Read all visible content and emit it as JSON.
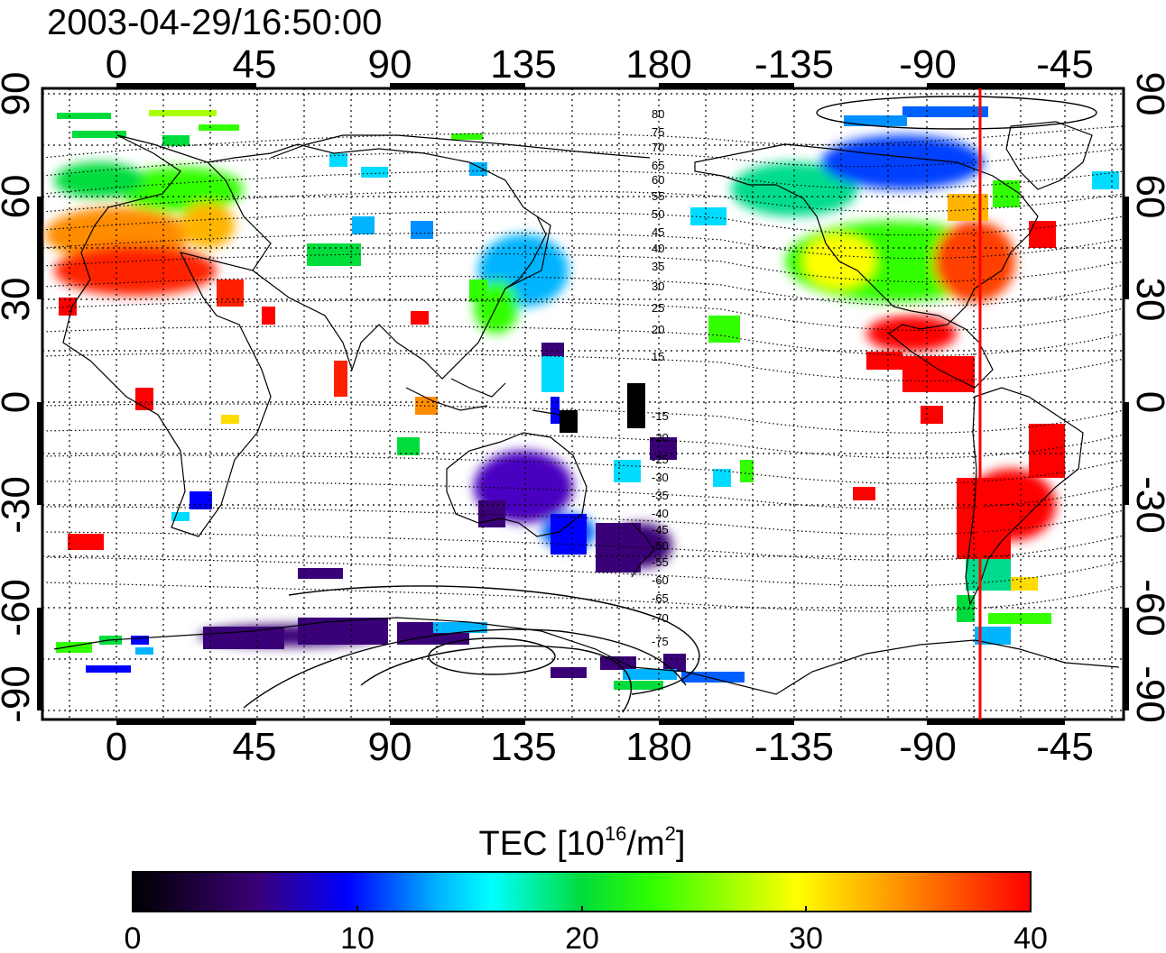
{
  "title": "2003-04-29/16:50:00",
  "map": {
    "top_lon_labels": [
      "0",
      "45",
      "90",
      "135",
      "180",
      "-135",
      "-90",
      "-45"
    ],
    "bottom_lon_labels": [
      "0",
      "45",
      "90",
      "135",
      "180",
      "-135",
      "-90",
      "-45"
    ],
    "left_lat_labels": [
      "90",
      "60",
      "30",
      "0",
      "-30",
      "-60",
      "-90"
    ],
    "right_lat_labels": [
      "90",
      "60",
      "30",
      "0",
      "-30",
      "-60",
      "-90"
    ],
    "contour_labels_north": [
      "80",
      "75",
      "70",
      "65",
      "60",
      "55",
      "50",
      "45",
      "40",
      "35",
      "30",
      "25",
      "20",
      "15"
    ],
    "contour_labels_south": [
      "-15",
      "-20",
      "-25",
      "-30",
      "-35",
      "-40",
      "-45",
      "-50",
      "-55",
      "-60",
      "-65",
      "-70",
      "-75"
    ],
    "meridian_marker_color": "#ff0000",
    "meridian_marker_lon": -73
  },
  "colorbar": {
    "title_prefix": "TEC  [10",
    "title_exp": "16",
    "title_mid": "/m",
    "title_exp2": "2",
    "title_suffix": "]",
    "tick_labels": [
      "0",
      "10",
      "20",
      "30",
      "40"
    ],
    "min": 0,
    "max": 40,
    "colors": [
      "#000000",
      "#3a0078",
      "#0000ff",
      "#00b4ff",
      "#00ffff",
      "#00dc3c",
      "#32ff00",
      "#ffff00",
      "#ff8c00",
      "#ff0000"
    ]
  }
}
